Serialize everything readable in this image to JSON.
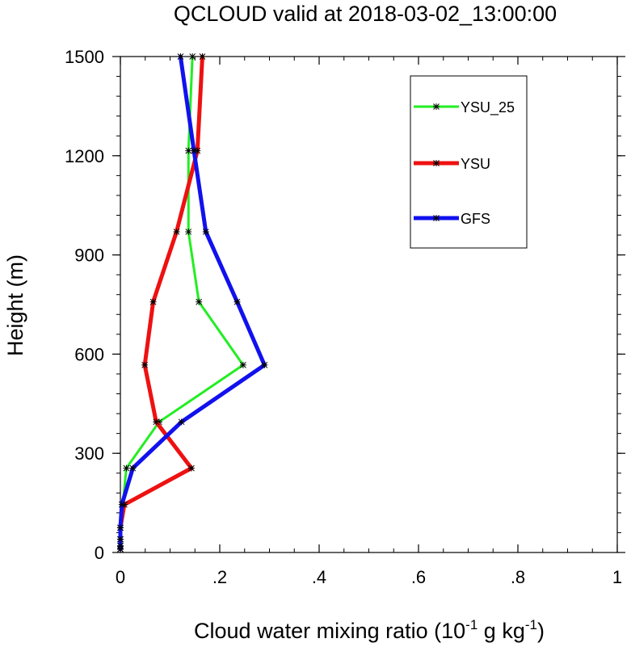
{
  "chart_data": {
    "type": "line",
    "title": "QCLOUD valid at 2018-03-02_13:00:00",
    "xlabel": "Cloud water mixing ratio (10",
    "xlabel_sup1": "-1",
    "xlabel_mid": " g kg",
    "xlabel_sup2": "-1",
    "xlabel_end": ")",
    "ylabel": "Height (m)",
    "xlim": [
      0,
      1
    ],
    "ylim": [
      0,
      1500
    ],
    "x_ticks": [
      0,
      0.2,
      0.4,
      0.6,
      0.8,
      1
    ],
    "x_tick_labels": [
      "0",
      ".2",
      ".4",
      ".6",
      ".8",
      "1"
    ],
    "y_ticks": [
      0,
      300,
      600,
      900,
      1200,
      1500
    ],
    "y_tick_labels": [
      "0",
      "300",
      "600",
      "900",
      "1200",
      "1500"
    ],
    "grid": false,
    "legend_position": "top-right",
    "series": [
      {
        "name": "YSU_25",
        "color": "#22ee22",
        "points": [
          [
            0,
            10
          ],
          [
            0,
            20
          ],
          [
            0,
            40
          ],
          [
            0,
            75
          ],
          [
            0.005,
            145
          ],
          [
            0.012,
            255
          ],
          [
            0.078,
            395
          ],
          [
            0.247,
            567
          ],
          [
            0.158,
            758
          ],
          [
            0.137,
            970
          ],
          [
            0.137,
            1215
          ],
          [
            0.145,
            1500
          ]
        ]
      },
      {
        "name": "YSU",
        "color": "#ee1111",
        "points": [
          [
            0,
            10
          ],
          [
            0,
            20
          ],
          [
            0,
            40
          ],
          [
            0,
            75
          ],
          [
            0.008,
            145
          ],
          [
            0.143,
            255
          ],
          [
            0.072,
            395
          ],
          [
            0.049,
            567
          ],
          [
            0.066,
            758
          ],
          [
            0.113,
            970
          ],
          [
            0.155,
            1215
          ],
          [
            0.165,
            1500
          ]
        ]
      },
      {
        "name": "GFS",
        "color": "#1111ee",
        "points": [
          [
            0,
            10
          ],
          [
            0,
            20
          ],
          [
            0,
            40
          ],
          [
            0,
            75
          ],
          [
            0.003,
            145
          ],
          [
            0.025,
            255
          ],
          [
            0.123,
            395
          ],
          [
            0.29,
            567
          ],
          [
            0.235,
            758
          ],
          [
            0.172,
            970
          ],
          [
            0.148,
            1215
          ],
          [
            0.121,
            1500
          ]
        ]
      }
    ]
  }
}
